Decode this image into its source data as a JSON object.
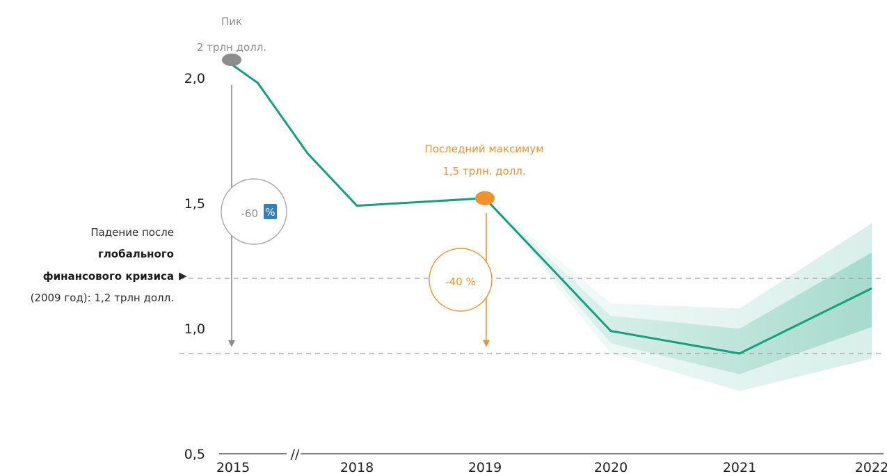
{
  "chart_data": {
    "type": "line",
    "x": [
      "2015",
      "2018",
      "2019",
      "2020",
      "2021",
      "2022"
    ],
    "series": [
      {
        "values": [
          2.05,
          1.49,
          1.52,
          0.99,
          0.9,
          1.16
        ],
        "interior_points": [
          [
            0.2,
            1.98
          ],
          [
            0.6,
            1.7
          ]
        ]
      }
    ],
    "forecast_band": {
      "from": "2019",
      "lower": [
        1.52,
        0.9,
        0.75,
        0.88
      ],
      "upper": [
        1.52,
        1.1,
        1.08,
        1.42
      ]
    },
    "ylim": [
      0.5,
      2.1
    ],
    "yticks": [
      "0,5",
      "1,0",
      "1,5",
      "2,0"
    ],
    "ytick_values": [
      0.5,
      1.0,
      1.5,
      2.0
    ],
    "reference_lines": [
      1.2,
      0.9
    ],
    "axis_break_symbol": "//",
    "annotations": {
      "peak": {
        "line1": "Пик",
        "line2": "2 трлн долл.",
        "value": 2.05
      },
      "peak_drop": {
        "label": "-60",
        "pct": "%"
      },
      "last_max": {
        "line1": "Последний максимум",
        "line2": "1,5 трлн. долл.",
        "value": 1.52
      },
      "last_max_drop": {
        "label": "-40 %"
      },
      "gfc": {
        "line1": "Падение после",
        "line2": "глобального",
        "line3": "финансового кризиса",
        "arrow": "▶",
        "line4": "(2009 год): 1,2 трлн долл."
      }
    },
    "colors": {
      "line": "#13a07b",
      "band": "#13a07b",
      "grey": "#8c8c8c",
      "orange": "#f0922b",
      "dashed": "#9a9a9a",
      "pct_box": "#2f7fc1"
    }
  }
}
